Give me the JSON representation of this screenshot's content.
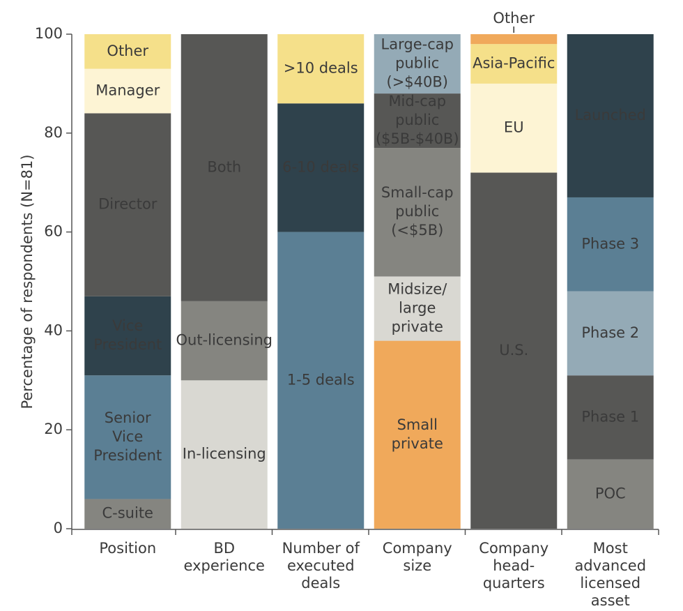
{
  "chart_data": {
    "type": "stacked-columns",
    "y_label": "Percentage of respondents (N=81)",
    "ylim": [
      0,
      100
    ],
    "yticks": [
      0,
      20,
      40,
      60,
      80,
      100
    ],
    "columns": [
      {
        "category": [
          "Position"
        ],
        "segments": [
          {
            "label": [
              "C-suite"
            ],
            "color": "#858580",
            "value": 6
          },
          {
            "label": [
              "Senior",
              "Vice",
              "President"
            ],
            "color": "#5b7f94",
            "value": 25
          },
          {
            "label": [
              "Vice",
              "President"
            ],
            "color": "#2f424c",
            "value": 16
          },
          {
            "label": [
              "Director"
            ],
            "color": "#575755",
            "value": 37
          },
          {
            "label": [
              "Manager"
            ],
            "color": "#fdf4d4",
            "value": 9
          },
          {
            "label": [
              "Other"
            ],
            "color": "#f5e08a",
            "value": 7
          }
        ]
      },
      {
        "category": [
          "BD",
          "experience"
        ],
        "segments": [
          {
            "label": [
              "In-licensing"
            ],
            "color": "#d9d8d2",
            "value": 30
          },
          {
            "label": [
              "Out-licensing"
            ],
            "color": "#858580",
            "value": 16
          },
          {
            "label": [
              "Both"
            ],
            "color": "#575755",
            "value": 54
          }
        ]
      },
      {
        "category": [
          "Number of",
          "executed",
          "deals"
        ],
        "segments": [
          {
            "label": [
              "1-5 deals"
            ],
            "color": "#5b7f94",
            "value": 60
          },
          {
            "label": [
              "6-10 deals"
            ],
            "color": "#2f424c",
            "value": 26
          },
          {
            "label": [
              ">10 deals"
            ],
            "color": "#f5e08a",
            "value": 14
          }
        ]
      },
      {
        "category": [
          "Company",
          "size"
        ],
        "segments": [
          {
            "label": [
              "Small",
              "private"
            ],
            "color": "#f0a95b",
            "value": 38
          },
          {
            "label": [
              "Midsize/",
              "large",
              "private"
            ],
            "color": "#d9d8d2",
            "value": 13
          },
          {
            "label": [
              "Small-cap",
              "public",
              "(<$5B)"
            ],
            "color": "#858580",
            "value": 26
          },
          {
            "label": [
              "Mid-cap",
              "public",
              "($5B-$40B)"
            ],
            "color": "#575755",
            "value": 11
          },
          {
            "label": [
              "Large-cap",
              "public",
              "(>$40B)"
            ],
            "color": "#94aab6",
            "value": 12
          }
        ]
      },
      {
        "category": [
          "Company",
          "head-",
          "quarters"
        ],
        "segments": [
          {
            "label": [
              "U.S."
            ],
            "color": "#575755",
            "value": 72
          },
          {
            "label": [
              "EU"
            ],
            "color": "#fdf4d4",
            "value": 18
          },
          {
            "label": [
              "Asia-Pacific"
            ],
            "color": "#f5e08a",
            "value": 8
          },
          {
            "label": [
              "Other"
            ],
            "color": "#f0a95b",
            "value": 2
          }
        ]
      },
      {
        "category": [
          "Most",
          "advanced",
          "licensed",
          "asset"
        ],
        "segments": [
          {
            "label": [
              "POC"
            ],
            "color": "#858580",
            "value": 14
          },
          {
            "label": [
              "Phase 1"
            ],
            "color": "#575755",
            "value": 17
          },
          {
            "label": [
              "Phase 2"
            ],
            "color": "#94aab6",
            "value": 17
          },
          {
            "label": [
              "Phase 3"
            ],
            "color": "#5b7f94",
            "value": 19
          },
          {
            "label": [
              "Launched"
            ],
            "color": "#2f424c",
            "value": 33
          }
        ]
      }
    ]
  }
}
